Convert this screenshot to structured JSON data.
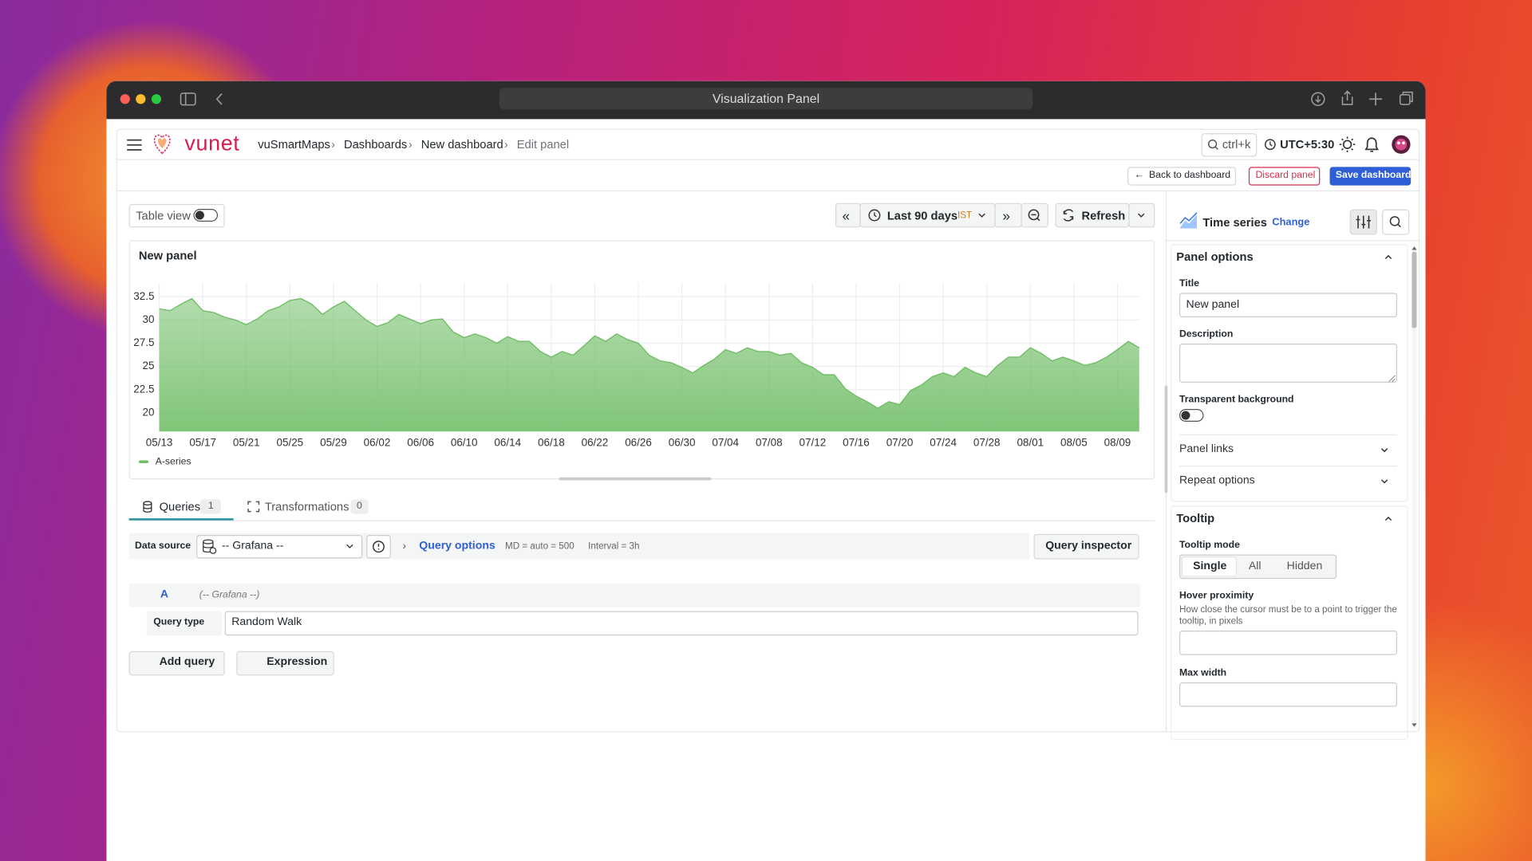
{
  "window": {
    "title": "Visualization Panel"
  },
  "header": {
    "brand": "vunet",
    "breadcrumbs": [
      "vuSmartMaps",
      "Dashboards",
      "New dashboard",
      "Edit panel"
    ],
    "search": "ctrl+k",
    "timezone": "UTC+5:30"
  },
  "actions": {
    "back": "Back to dashboard",
    "discard": "Discard panel",
    "save": "Save dashboard"
  },
  "toolbar": {
    "table_view": "Table view",
    "time_range": "Last 90 days",
    "time_zone": "IST",
    "refresh": "Refresh"
  },
  "chart_data": {
    "type": "area",
    "title": "New panel",
    "categories": [
      "05/13",
      null,
      null,
      null,
      "05/17",
      null,
      null,
      null,
      "05/21",
      null,
      null,
      null,
      "05/25",
      null,
      null,
      null,
      "05/29",
      null,
      null,
      null,
      "06/02",
      null,
      null,
      null,
      "06/06",
      null,
      null,
      null,
      "06/10",
      null,
      null,
      null,
      "06/14",
      null,
      null,
      null,
      "06/18",
      null,
      null,
      null,
      "06/22",
      null,
      null,
      null,
      "06/26",
      null,
      null,
      null,
      "06/30",
      null,
      null,
      null,
      "07/04",
      null,
      null,
      null,
      "07/08",
      null,
      null,
      null,
      "07/12",
      null,
      null,
      null,
      "07/16",
      null,
      null,
      null,
      "07/20",
      null,
      null,
      null,
      "07/24",
      null,
      null,
      null,
      "07/28",
      null,
      null,
      null,
      "08/01",
      null,
      null,
      null,
      "08/05",
      null,
      null,
      null,
      "08/09",
      null,
      null
    ],
    "series": [
      {
        "name": "A-series",
        "color": "#73bf69",
        "values": [
          31.2,
          31.0,
          31.7,
          32.3,
          31.0,
          30.8,
          30.3,
          30.0,
          29.5,
          30.1,
          31.0,
          31.4,
          32.1,
          32.3,
          31.7,
          30.6,
          31.4,
          32.0,
          31.0,
          30.0,
          29.3,
          29.7,
          30.6,
          30.1,
          29.6,
          30.0,
          30.1,
          28.7,
          28.1,
          28.5,
          28.1,
          27.5,
          28.2,
          27.7,
          27.7,
          26.6,
          26.0,
          26.6,
          26.2,
          27.2,
          28.3,
          27.7,
          28.5,
          27.9,
          27.5,
          26.2,
          25.6,
          25.4,
          24.9,
          24.3,
          25.1,
          25.8,
          26.8,
          26.4,
          27.0,
          26.6,
          26.6,
          26.2,
          26.4,
          25.4,
          24.9,
          24.1,
          24.1,
          22.6,
          21.8,
          21.2,
          20.5,
          21.2,
          20.9,
          22.4,
          23.0,
          23.9,
          24.3,
          23.9,
          24.9,
          24.3,
          23.9,
          25.1,
          26.0,
          26.0,
          27.0,
          26.4,
          25.6,
          26.0,
          25.6,
          25.1,
          25.4,
          26.0,
          26.8,
          27.7,
          27.0
        ]
      }
    ],
    "ylim": [
      18,
      34
    ],
    "yticks": [
      20,
      22.5,
      25,
      27.5,
      30,
      32.5
    ],
    "grid": true,
    "legend": "bottom-left"
  },
  "tabs": [
    {
      "label": "Queries",
      "count": 1
    },
    {
      "label": "Transformations",
      "count": 0
    }
  ],
  "query_bar": {
    "data_source_label": "Data source",
    "data_source": "-- Grafana --",
    "query_options": "Query options",
    "max_data_points": "MD = auto = 500",
    "interval": "Interval = 3h",
    "inspector": "Query inspector"
  },
  "query": {
    "ref_id": "A",
    "source": "(-- Grafana --)",
    "type_label": "Query type",
    "type": "Random Walk"
  },
  "buttons": {
    "add_query": "Add query",
    "expression": "Expression"
  },
  "options": {
    "visualization": "Time series",
    "change": "Change",
    "panel_options": "Panel options",
    "title_label": "Title",
    "title_value": "New panel",
    "description_label": "Description",
    "transparent_label": "Transparent background",
    "panel_links": "Panel links",
    "repeat_options": "Repeat options",
    "tooltip": "Tooltip",
    "tooltip_mode_label": "Tooltip mode",
    "tooltip_modes": [
      "Single",
      "All",
      "Hidden"
    ],
    "hover_label": "Hover proximity",
    "hover_description": "How close the cursor must be to a point to trigger the tooltip, in pixels",
    "max_width_label": "Max width"
  }
}
